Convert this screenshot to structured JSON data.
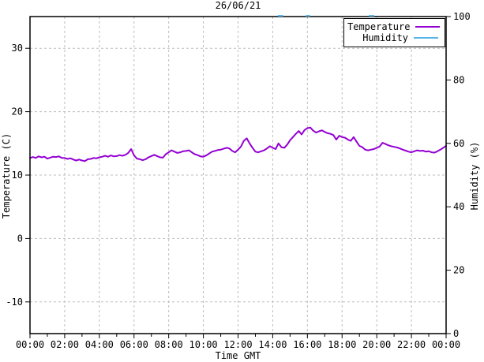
{
  "title": "26/06/21",
  "colors": {
    "temperature": "#9400d3",
    "humidity": "#56b4e9",
    "grid": "#bdbdbd",
    "axis": "#000000",
    "background": "#ffffff"
  },
  "legend": {
    "items": [
      {
        "label": "Temperature",
        "color": "#9400d3"
      },
      {
        "label": "Humidity",
        "color": "#56b4e9"
      }
    ]
  },
  "axes": {
    "x_title": "Time GMT",
    "y_left_title": "Temperature (C)",
    "y_right_title": "Humidity (%)"
  },
  "chart_data": {
    "type": "line",
    "title": "26/06/21",
    "xlabel": "Time GMT",
    "ylabel_left": "Temperature (C)",
    "ylabel_right": "Humidity (%)",
    "grid": true,
    "legend_position": "top-right",
    "x_range_hours": [
      0,
      24
    ],
    "x_tick_hours": [
      0,
      2,
      4,
      6,
      8,
      10,
      12,
      14,
      16,
      18,
      20,
      22,
      24
    ],
    "x_tick_labels": [
      "00:00",
      "02:00",
      "04:00",
      "06:00",
      "08:00",
      "10:00",
      "12:00",
      "14:00",
      "16:00",
      "18:00",
      "20:00",
      "22:00",
      "00:00"
    ],
    "x_minor_hours": [
      1,
      3,
      5,
      7,
      9,
      11,
      13,
      15,
      17,
      19,
      21,
      23
    ],
    "ylim_left": [
      -15,
      35
    ],
    "yticks_left": [
      30,
      20,
      10,
      0,
      -10
    ],
    "ylim_right": [
      0,
      100
    ],
    "yticks_right": [
      100,
      80,
      60,
      40,
      20,
      0
    ],
    "series": [
      {
        "name": "Temperature",
        "axis": "left",
        "unit": "C",
        "color": "#9400d3",
        "start_hour": 0,
        "interval_minutes": 10,
        "values": [
          12.7,
          12.85,
          12.7,
          12.95,
          12.8,
          12.9,
          12.6,
          12.75,
          12.9,
          12.85,
          12.95,
          12.7,
          12.7,
          12.55,
          12.65,
          12.45,
          12.3,
          12.45,
          12.3,
          12.2,
          12.5,
          12.55,
          12.7,
          12.65,
          12.8,
          12.9,
          13.05,
          12.9,
          13.1,
          12.95,
          13.0,
          13.15,
          13.05,
          13.2,
          13.5,
          14.1,
          13.1,
          12.6,
          12.5,
          12.35,
          12.5,
          12.8,
          13.0,
          13.2,
          13.0,
          12.8,
          12.75,
          13.3,
          13.6,
          13.9,
          13.7,
          13.5,
          13.6,
          13.75,
          13.8,
          13.9,
          13.6,
          13.3,
          13.15,
          12.95,
          12.9,
          13.1,
          13.4,
          13.7,
          13.8,
          13.95,
          14.0,
          14.15,
          14.3,
          14.2,
          13.8,
          13.6,
          14.0,
          14.5,
          15.4,
          15.8,
          15.0,
          14.3,
          13.7,
          13.6,
          13.75,
          13.9,
          14.2,
          14.55,
          14.3,
          14.1,
          15.0,
          14.4,
          14.3,
          14.8,
          15.5,
          16.0,
          16.5,
          16.95,
          16.4,
          17.1,
          17.4,
          17.5,
          17.0,
          16.7,
          16.9,
          17.05,
          16.8,
          16.6,
          16.5,
          16.3,
          15.6,
          16.2,
          16.0,
          15.9,
          15.6,
          15.4,
          16.0,
          15.3,
          14.6,
          14.4,
          14.0,
          13.9,
          14.0,
          14.1,
          14.3,
          14.5,
          15.1,
          14.9,
          14.7,
          14.55,
          14.45,
          14.35,
          14.2,
          14.0,
          13.85,
          13.7,
          13.6,
          13.75,
          13.9,
          13.8,
          13.85,
          13.7,
          13.75,
          13.6,
          13.55,
          13.75,
          14.0,
          14.3,
          14.6
        ]
      },
      {
        "name": "Humidity",
        "axis": "right",
        "unit": "%",
        "color": "#56b4e9",
        "segments": [
          {
            "start_hour": 14.3,
            "end_hour": 14.6,
            "value": 100
          },
          {
            "start_hour": 15.9,
            "end_hour": 16.15,
            "value": 100
          },
          {
            "start_hour": 19.55,
            "end_hour": 19.85,
            "value": 100
          }
        ]
      }
    ]
  }
}
